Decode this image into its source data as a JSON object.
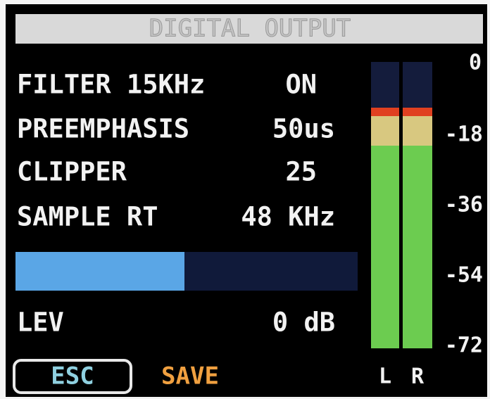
{
  "title": "DIGITAL OUTPUT",
  "settings": [
    {
      "label": "FILTER 15KHz",
      "value": "ON"
    },
    {
      "label": "PREEMPHASIS",
      "value": "50us"
    },
    {
      "label": "CLIPPER",
      "value": "25"
    },
    {
      "label": "SAMPLE RT",
      "value": "48 KHz"
    }
  ],
  "level": {
    "label": "LEV",
    "value": "0 dB"
  },
  "meter": {
    "scale": [
      "0",
      "-18",
      "-36",
      "-54",
      "-72"
    ],
    "channels": [
      "L",
      "R"
    ]
  },
  "buttons": {
    "escape": "ESC",
    "save": "SAVE"
  }
}
